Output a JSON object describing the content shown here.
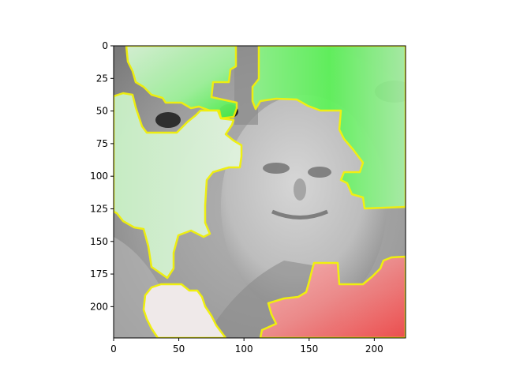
{
  "chart_data": {
    "type": "heatmap",
    "title": "",
    "xlabel": "",
    "ylabel": "",
    "xlim": [
      0,
      224
    ],
    "ylim": [
      224,
      0
    ],
    "y_inverted": true,
    "grid": false,
    "x_ticks": [
      0,
      50,
      100,
      150,
      200
    ],
    "y_ticks": [
      0,
      25,
      50,
      75,
      100,
      125,
      150,
      175,
      200
    ],
    "image": "grayscale face photograph with saliency overlay",
    "boundary_color": "#f2f20a",
    "overlay_colors": {
      "positive": "#3ff23f",
      "positive_light": "#d8f3d6",
      "negative": "#f24a4a",
      "negative_light": "#f6eaea"
    },
    "regions": [
      {
        "id": "green-top-left",
        "polarity": "positive"
      },
      {
        "id": "green-top-right",
        "polarity": "positive"
      },
      {
        "id": "green-left",
        "polarity": "positive"
      },
      {
        "id": "red-bottom-right",
        "polarity": "negative"
      },
      {
        "id": "pink-bottom-left",
        "polarity": "negative"
      }
    ]
  }
}
